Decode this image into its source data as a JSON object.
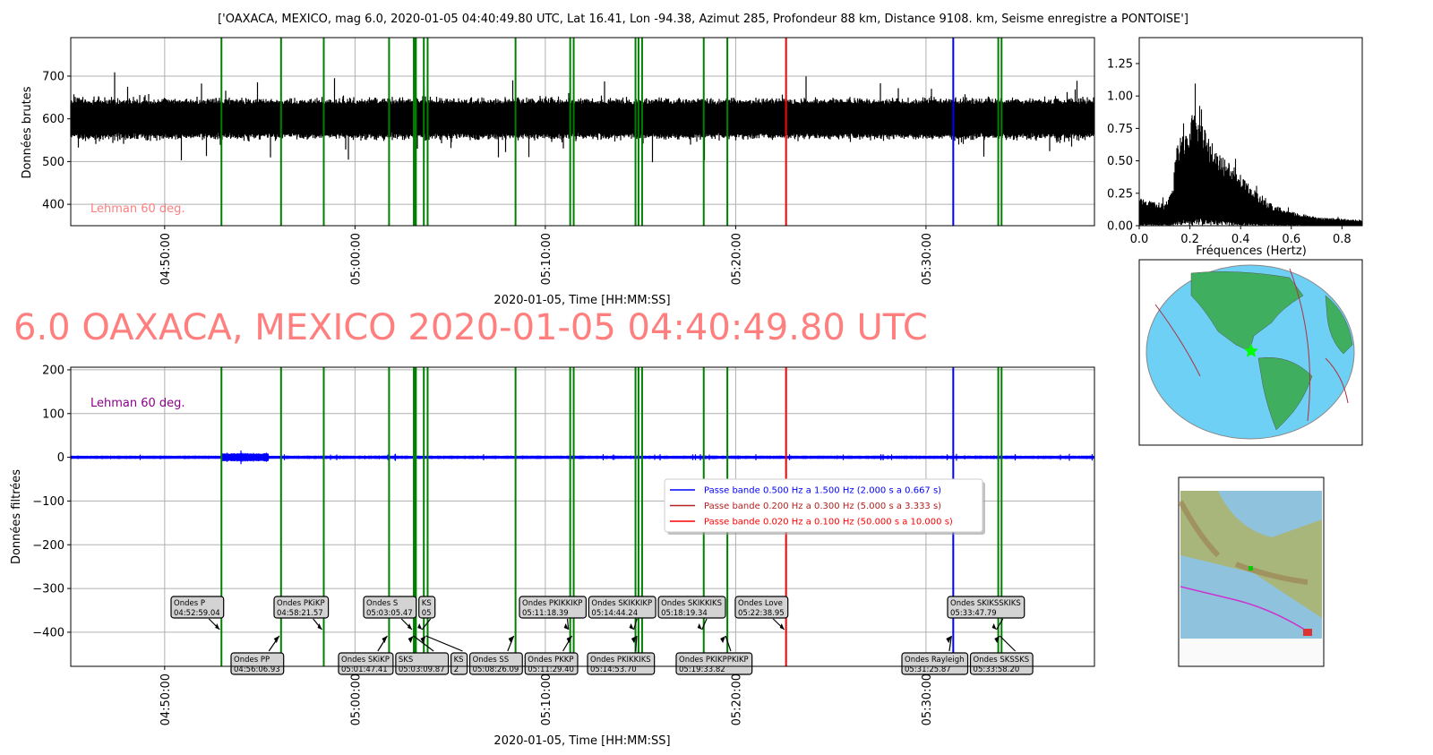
{
  "figure_title": "['OAXACA, MEXICO, mag 6.0, 2020-01-05 04:40:49.80 UTC, Lat 16.41, Lon -94.38, Azimut 285, Profondeur 88 km, Distance 9108. km, Seisme enregistre a PONTOISE']",
  "big_title": "6.0 OAXACA, MEXICO 2020-01-05 04:40:49.80 UTC",
  "chart_data": [
    {
      "type": "line",
      "name": "raw-trace",
      "ylabel": "Données brutes",
      "xlabel": "2020-01-05, Time [HH:MM:SS]",
      "xlim": [
        "04:45:04",
        "05:38:51"
      ],
      "ylim": [
        350,
        790
      ],
      "xticks": [
        "04:50:00",
        "05:00:00",
        "05:10:00",
        "05:20:00",
        "05:30:00"
      ],
      "yticks": [
        400,
        500,
        600,
        700
      ],
      "grid": true,
      "annotation": "Lehman 60 deg.",
      "annotation_color": "#ff7f7f",
      "trace_color": "#000000",
      "trace_baseline": 600,
      "trace_typical_range": [
        540,
        660
      ]
    },
    {
      "type": "area",
      "name": "spectrum",
      "xlabel": "Fréquences (Hertz)",
      "xlim": [
        0,
        0.88
      ],
      "ylim": [
        0,
        1.45
      ],
      "xticks": [
        "0.0",
        "0.2",
        "0.4",
        "0.6",
        "0.8"
      ],
      "yticks": [
        "0.00",
        "0.25",
        "0.50",
        "0.75",
        "1.00",
        "1.25"
      ],
      "envelope": {
        "x": [
          0,
          0.05,
          0.1,
          0.13,
          0.15,
          0.2,
          0.23,
          0.28,
          0.33,
          0.38,
          0.43,
          0.5,
          0.6,
          0.7,
          0.88
        ],
        "y": [
          0.2,
          0.17,
          0.16,
          0.25,
          0.6,
          0.78,
          0.8,
          0.6,
          0.48,
          0.4,
          0.3,
          0.17,
          0.1,
          0.06,
          0.04
        ]
      }
    },
    {
      "type": "line",
      "name": "filtered-trace",
      "ylabel": "Données filtrées",
      "xlabel": "2020-01-05, Time [HH:MM:SS]",
      "xlim": [
        "04:45:04",
        "05:38:51"
      ],
      "ylim": [
        -478,
        206
      ],
      "xticks": [
        "04:50:00",
        "05:00:00",
        "05:10:00",
        "05:20:00",
        "05:30:00"
      ],
      "yticks": [
        200,
        100,
        0,
        -100,
        -200,
        -300,
        -400
      ],
      "grid": true,
      "annotation": "Lehman 60 deg.",
      "annotation_color": "#8b008b",
      "trace_color": "#0000ff",
      "legend": {
        "placement": "center-right",
        "entries": [
          {
            "label": "Passe bande 0.500 Hz a 1.500 Hz (2.000 s a 0.667 s)",
            "color": "#0000ff"
          },
          {
            "label": "Passe bande 0.200 Hz a 0.300 Hz (5.000 s a 3.333 s)",
            "color": "#b22222"
          },
          {
            "label": "Passe bande 0.020 Hz a 0.100 Hz (50.000 s a 10.000 s)",
            "color": "#ff0000"
          }
        ]
      }
    }
  ],
  "phases": [
    {
      "label": "Ondes P",
      "time": "04:52:59.04",
      "color": "#008000",
      "row": "top"
    },
    {
      "label": "Ondes PP",
      "time": "04:56:06.93",
      "color": "#008000",
      "row": "bottom"
    },
    {
      "label": "Ondes PKiKP",
      "time": "04:58:21.57",
      "color": "#008000",
      "row": "top"
    },
    {
      "label": "Ondes SKiKP",
      "time": "05:01:47.41",
      "color": "#008000",
      "row": "bottom"
    },
    {
      "label": "Ondes S",
      "time": "05:03:05.47",
      "color": "#008000",
      "row": "top"
    },
    {
      "label": "SKS",
      "time": "05:03:09.87",
      "color": "#008000",
      "row": "bottom"
    },
    {
      "label": "KS",
      "time": "05",
      "color": "#008000",
      "row": "top",
      "at": "05:03:37"
    },
    {
      "label": "KS",
      "time": "2",
      "color": "#008000",
      "row": "bottom",
      "at": "05:03:49"
    },
    {
      "label": "Ondes SS",
      "time": "05:08:26.09",
      "color": "#008000",
      "row": "bottom"
    },
    {
      "label": "Ondes PKIKKIKP",
      "time": "05:11:18.39",
      "color": "#008000",
      "row": "top"
    },
    {
      "label": "Ondes PKKP",
      "time": "05:11:29.40",
      "color": "#008000",
      "row": "bottom"
    },
    {
      "label": "Ondes SKIKKIKP",
      "time": "05:14:44.24",
      "color": "#008000",
      "row": "top"
    },
    {
      "label": "Ondes PKIKKIKS",
      "time": "05:14:53.70",
      "color": "#008000",
      "row": "bottom"
    },
    {
      "label": "Ondes SKIKKIKS",
      "time": "05:18:19.34",
      "color": "#008000",
      "row": "top"
    },
    {
      "label": "Ondes PKIKPPKIKP",
      "time": "05:19:33.82",
      "color": "#008000",
      "row": "bottom"
    },
    {
      "label": "Ondes Love",
      "time": "05:22:38.95",
      "color": "#ff0000",
      "row": "top"
    },
    {
      "label": "Ondes Rayleigh",
      "time": "05:31:25.87",
      "color": "#0000ff",
      "row": "bottom"
    },
    {
      "label": "Ondes SKIKSSKIKS",
      "time": "05:33:47.79",
      "color": "#008000",
      "row": "top"
    },
    {
      "label": "Ondes SKSSKS",
      "time": "05:33:58.20",
      "color": "#008000",
      "row": "bottom"
    }
  ],
  "extra_lines": [
    {
      "at": "05:03:12",
      "color": "#008000"
    },
    {
      "at": "05:15:05",
      "color": "#008000"
    }
  ],
  "map": {
    "epicenter_marker": "star",
    "epicenter_color": "#00ff00"
  },
  "colors": {
    "ocean": "#6fd0f5",
    "land": "#3fae5f",
    "plates": "#b03040"
  }
}
